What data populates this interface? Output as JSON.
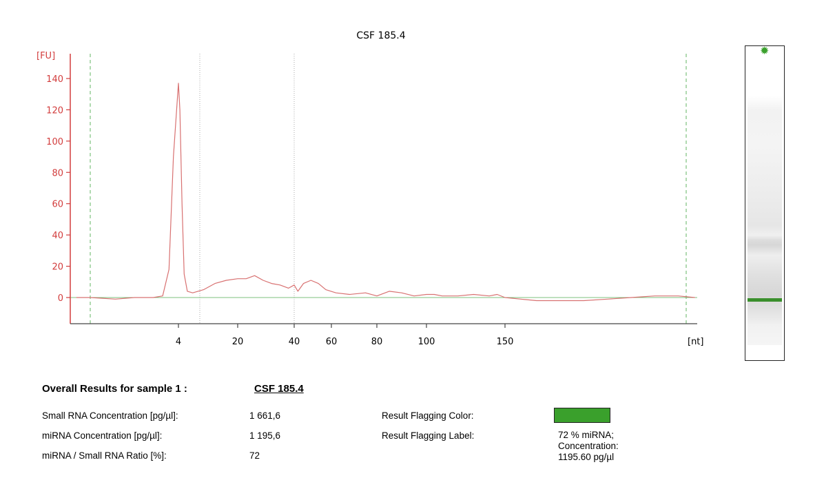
{
  "chart_data": {
    "type": "line",
    "title": "CSF 185.4",
    "ylabel": "[FU]",
    "xlabel": "[nt]",
    "ylim": [
      -16,
      150
    ],
    "yticks": [
      "0",
      "20",
      "40",
      "60",
      "80",
      "100",
      "120",
      "140"
    ],
    "xticks": [
      "4",
      "20",
      "40",
      "60",
      "80",
      "100",
      "150"
    ],
    "grid": false,
    "colors": {
      "axis": "#d23c3c",
      "trace": "#d87070",
      "baseline": "#7cc07c",
      "markers": "#7cc07c",
      "region": "#aaaaaa"
    },
    "series": [
      {
        "points": [
          [
            -13,
            0
          ],
          [
            -10,
            0
          ],
          [
            -6,
            -1
          ],
          [
            -3,
            0
          ],
          [
            0,
            0
          ],
          [
            1.5,
            1
          ],
          [
            2.5,
            18
          ],
          [
            3.2,
            90
          ],
          [
            4,
            137
          ],
          [
            4.4,
            120
          ],
          [
            5,
            60
          ],
          [
            5.6,
            15
          ],
          [
            6.5,
            4
          ],
          [
            8,
            3
          ],
          [
            11,
            5
          ],
          [
            14,
            9
          ],
          [
            17,
            11
          ],
          [
            20,
            12
          ],
          [
            23,
            12
          ],
          [
            26,
            14
          ],
          [
            29,
            11
          ],
          [
            32,
            9
          ],
          [
            35,
            8
          ],
          [
            38,
            6
          ],
          [
            40,
            8
          ],
          [
            42,
            4
          ],
          [
            45,
            9
          ],
          [
            49,
            11
          ],
          [
            53,
            9
          ],
          [
            57,
            5
          ],
          [
            62,
            3
          ],
          [
            68,
            2
          ],
          [
            75,
            3
          ],
          [
            80,
            1
          ],
          [
            85,
            4
          ],
          [
            90,
            3
          ],
          [
            95,
            1
          ],
          [
            100,
            2
          ],
          [
            105,
            2
          ],
          [
            110,
            1
          ],
          [
            120,
            1
          ],
          [
            130,
            2
          ],
          [
            140,
            1
          ],
          [
            145,
            2
          ],
          [
            150,
            0
          ],
          [
            160,
            -1
          ],
          [
            170,
            -2
          ],
          [
            185,
            -2
          ],
          [
            200,
            -2
          ],
          [
            215,
            -1
          ],
          [
            230,
            0
          ],
          [
            245,
            1
          ],
          [
            260,
            1
          ],
          [
            275,
            0
          ]
        ]
      }
    ],
    "marker_lines_nt": [
      -10,
      265
    ],
    "region_lines_nt": [
      10,
      40
    ]
  },
  "lane": {
    "marker_color": "#3a8f2c",
    "dot_color": "#3aa02c"
  },
  "results": {
    "heading": "Overall Results for sample 1  :",
    "sample": "CSF 185.4",
    "rows": [
      {
        "label": "Small RNA Concentration [pg/µl]:",
        "value": "1 661,6"
      },
      {
        "label": "miRNA Concentration [pg/µl]:",
        "value": "1 195,6"
      },
      {
        "label": "miRNA / Small RNA Ratio [%]:",
        "value": "72"
      }
    ],
    "flag_color_label": "Result Flagging Color:",
    "flag_label_label": "Result Flagging Label:",
    "flag_color": "#3aa02c",
    "flag_text": [
      "72 % miRNA;",
      "Concentration:",
      "1195.60 pg/µl"
    ]
  }
}
